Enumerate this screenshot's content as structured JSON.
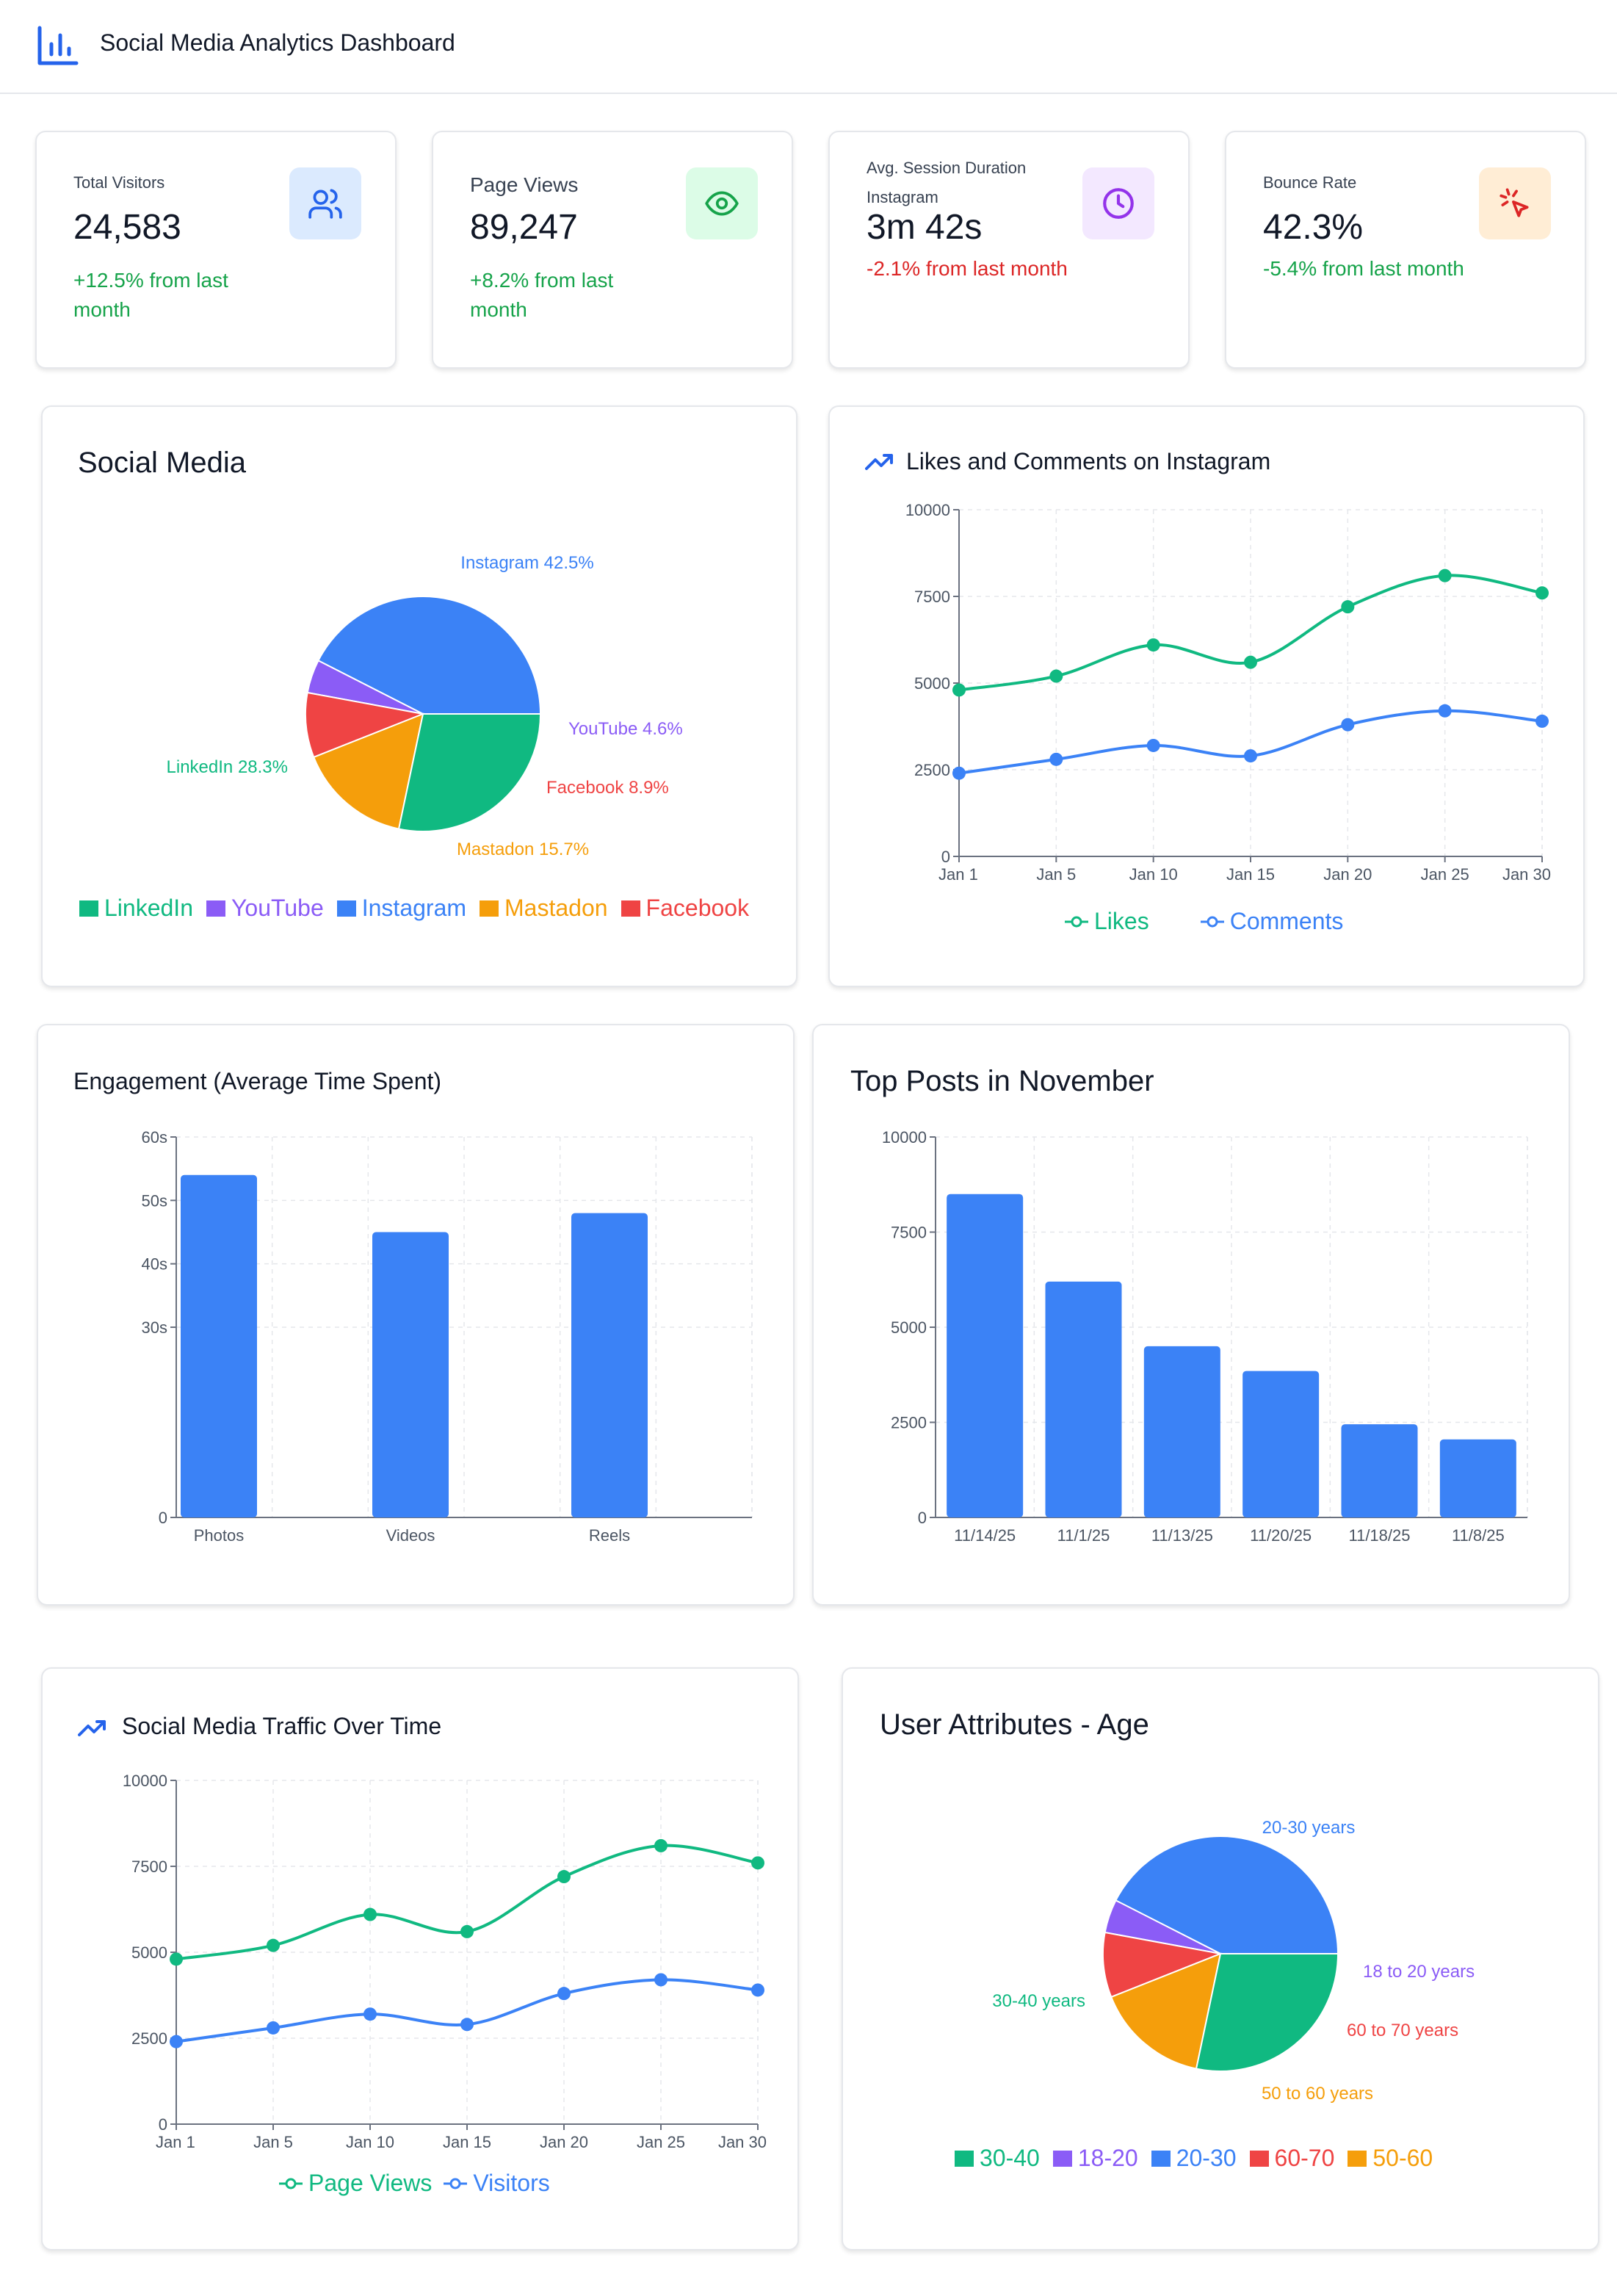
{
  "header": {
    "title": "Social Media Analytics Dashboard",
    "icon": "bar-chart-icon"
  },
  "stats": [
    {
      "label": "Total Visitors",
      "sub": "",
      "value": "24,583",
      "change": "+12.5% from last month",
      "trend": "positive",
      "icon": "users-icon",
      "icon_bg": "#dbeafe",
      "icon_color": "#2563eb"
    },
    {
      "label": "Page Views",
      "sub": "",
      "value": "89,247",
      "change": "+8.2% from last month",
      "trend": "positive",
      "icon": "eye-icon",
      "icon_bg": "#dcfce7",
      "icon_color": "#16a34a"
    },
    {
      "label": "Avg. Session Duration",
      "sub": "Instagram",
      "value": "3m 42s",
      "change": "-2.1% from last month",
      "trend": "negative",
      "icon": "clock-icon",
      "icon_bg": "#f3e8ff",
      "icon_color": "#9333ea"
    },
    {
      "label": "Bounce Rate",
      "sub": "",
      "value": "42.3%",
      "change": "-5.4% from last month",
      "trend": "positive",
      "icon": "pointer-icon",
      "icon_bg": "#ffedd5",
      "icon_color": "#dc2626"
    }
  ],
  "social_media": {
    "title": "Social Media",
    "legend": [
      "LinkedIn",
      "YouTube",
      "Instagram",
      "Mastadon",
      "Facebook"
    ]
  },
  "likes_comments": {
    "title": "Likes and Comments on Instagram"
  },
  "engagement": {
    "title": "Engagement (Average Time Spent)"
  },
  "top_posts": {
    "title": "Top Posts in November"
  },
  "traffic": {
    "title": "Social Media Traffic Over Time"
  },
  "age": {
    "title": "User Attributes - Age",
    "legend": [
      "30-40",
      "18-20",
      "20-30",
      "60-70",
      "50-60"
    ]
  },
  "colors": {
    "green": "#10b981",
    "blue": "#3b82f6",
    "purple": "#8b5cf6",
    "orange": "#f59e0b",
    "red": "#ef4444"
  },
  "chart_data": [
    {
      "id": "social-media-pie",
      "type": "pie",
      "title": "Social Media",
      "slices": [
        {
          "name": "Instagram",
          "value": 42.5,
          "label": "Instagram 42.5%",
          "color": "#3b82f6"
        },
        {
          "name": "YouTube",
          "value": 4.6,
          "label": "YouTube 4.6%",
          "color": "#8b5cf6"
        },
        {
          "name": "Facebook",
          "value": 8.9,
          "label": "Facebook 8.9%",
          "color": "#ef4444"
        },
        {
          "name": "Mastadon",
          "value": 15.7,
          "label": "Mastadon 15.7%",
          "color": "#f59e0b"
        },
        {
          "name": "LinkedIn",
          "value": 28.3,
          "label": "LinkedIn 28.3%",
          "color": "#10b981"
        }
      ]
    },
    {
      "id": "likes-comments-line",
      "type": "line",
      "title": "Likes and Comments on Instagram",
      "x": [
        "Jan 1",
        "Jan 5",
        "Jan 10",
        "Jan 15",
        "Jan 20",
        "Jan 25",
        "Jan 30"
      ],
      "series": [
        {
          "name": "Likes",
          "values": [
            4800,
            5200,
            6100,
            5600,
            7200,
            8100,
            7600
          ],
          "color": "#10b981"
        },
        {
          "name": "Comments",
          "values": [
            2400,
            2800,
            3200,
            2900,
            3800,
            4200,
            3900
          ],
          "color": "#3b82f6"
        }
      ],
      "ylim": [
        0,
        10000
      ],
      "yticks": [
        0,
        2500,
        5000,
        7500,
        10000
      ],
      "grid": true,
      "legend": "bottom"
    },
    {
      "id": "engagement-bar",
      "type": "bar",
      "title": "Engagement (Average Time Spent)",
      "categories": [
        "Photos",
        "Videos",
        "Reels"
      ],
      "values": [
        54,
        45,
        48
      ],
      "color": "#3b82f6",
      "ylim": [
        0,
        60
      ],
      "yticks": [
        0,
        30,
        40,
        50,
        60
      ],
      "ytick_labels": [
        "0",
        "30s",
        "40s",
        "50s",
        "60s"
      ],
      "grid": true
    },
    {
      "id": "top-posts-bar",
      "type": "bar",
      "title": "Top Posts in November",
      "categories": [
        "11/14/25",
        "11/1/25",
        "11/13/25",
        "11/20/25",
        "11/18/25",
        "11/8/25"
      ],
      "values": [
        8500,
        6200,
        4500,
        3850,
        2450,
        2050
      ],
      "color": "#3b82f6",
      "ylim": [
        0,
        10000
      ],
      "yticks": [
        0,
        2500,
        5000,
        7500,
        10000
      ],
      "grid": true
    },
    {
      "id": "traffic-line",
      "type": "line",
      "title": "Social Media Traffic Over Time",
      "x": [
        "Jan 1",
        "Jan 5",
        "Jan 10",
        "Jan 15",
        "Jan 20",
        "Jan 25",
        "Jan 30"
      ],
      "series": [
        {
          "name": "Page Views",
          "values": [
            4800,
            5200,
            6100,
            5600,
            7200,
            8100,
            7600
          ],
          "color": "#10b981"
        },
        {
          "name": "Visitors",
          "values": [
            2400,
            2800,
            3200,
            2900,
            3800,
            4200,
            3900
          ],
          "color": "#3b82f6"
        }
      ],
      "ylim": [
        0,
        10000
      ],
      "yticks": [
        0,
        2500,
        5000,
        7500,
        10000
      ],
      "grid": true,
      "legend": "bottom"
    },
    {
      "id": "age-pie",
      "type": "pie",
      "title": "User Attributes - Age",
      "slices": [
        {
          "name": "20-30",
          "value": 42.5,
          "label": "20-30 years",
          "color": "#3b82f6"
        },
        {
          "name": "18-20",
          "value": 4.6,
          "label": "18 to 20 years",
          "color": "#8b5cf6"
        },
        {
          "name": "60-70",
          "value": 8.9,
          "label": "60 to 70 years",
          "color": "#ef4444"
        },
        {
          "name": "50-60",
          "value": 15.7,
          "label": "50 to 60 years",
          "color": "#f59e0b"
        },
        {
          "name": "30-40",
          "value": 28.3,
          "label": "30-40 years",
          "color": "#10b981"
        }
      ]
    }
  ]
}
